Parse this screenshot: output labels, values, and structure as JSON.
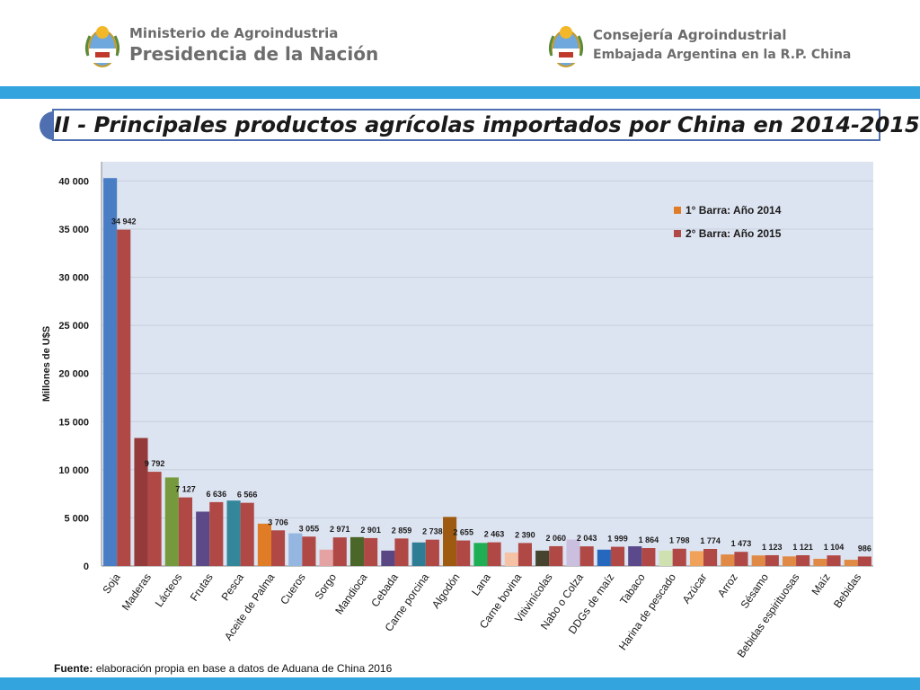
{
  "header": {
    "left_org_line1": "Ministerio de Agroindustria",
    "left_org_line2": "Presidencia de la Nación",
    "right_org_line1": "Consejería Agroindustrial",
    "right_org_line2": "Embajada Argentina en la R.P. China"
  },
  "title": "II - Principales productos agrícolas importados por China en 2014-2015",
  "source": {
    "label": "Fuente:",
    "text": "elaboración propia en base a datos de Aduana de China 2016"
  },
  "chart_data": {
    "type": "bar",
    "title": "",
    "xlabel": "",
    "ylabel": "Millones de U$S",
    "ylim": [
      0,
      42000
    ],
    "yticks": [
      0,
      5000,
      10000,
      15000,
      20000,
      25000,
      30000,
      35000,
      40000
    ],
    "ytick_labels": [
      "0",
      "5 000",
      "10 000",
      "15 000",
      "20 000",
      "25 000",
      "30 000",
      "35 000",
      "40 000"
    ],
    "grid": true,
    "legend_position": "top-right",
    "categories": [
      "Soja",
      "Maderas",
      "Lácteos",
      "Frutas",
      "Pesca",
      "Aceite de Palma",
      "Cueros",
      "Sorgo",
      "Mandioca",
      "Cebada",
      "Carne porcina",
      "Algodón",
      "Lana",
      "Carne bovina",
      "Vitivinícolas",
      "Nabo o Colza",
      "DDGs de maíz",
      "Tabaco",
      "Harina de pescado",
      "Azúcar",
      "Arroz",
      "Sésamo",
      "Bebidas espirituosas",
      "Maíz",
      "Bebidas"
    ],
    "series": [
      {
        "name": "1° Barra: Año 2014",
        "values": [
          40300,
          13300,
          9200,
          5650,
          6800,
          4400,
          3400,
          1700,
          3000,
          1600,
          2450,
          5100,
          2400,
          1400,
          1600,
          2750,
          1700,
          2050,
          1600,
          1550,
          1200,
          1100,
          1000,
          750,
          650
        ],
        "colors": [
          "#4a7ec4",
          "#953a3a",
          "#77993e",
          "#5b4a87",
          "#34879b",
          "#e07c26",
          "#94b6e0",
          "#e5a2a2",
          "#4a6629",
          "#5a4682",
          "#2e7d94",
          "#9e5a10",
          "#1fae53",
          "#f5c2a6",
          "#46442e",
          "#cbbfe0",
          "#2568bd",
          "#5a4a8c",
          "#cfe1b0",
          "#f0a25a",
          "#e08a45",
          "#e08a45",
          "#e08a45",
          "#e08a45",
          "#e08a45"
        ]
      },
      {
        "name": "2° Barra: Año 2015",
        "values": [
          34942,
          9792,
          7127,
          6636,
          6566,
          3706,
          3055,
          2971,
          2901,
          2859,
          2738,
          2655,
          2463,
          2390,
          2060,
          2043,
          1999,
          1864,
          1798,
          1774,
          1473,
          1123,
          1121,
          1104,
          986
        ],
        "labels": [
          "34 942",
          "9 792",
          "7 127",
          "6 636",
          "6 566",
          "3 706",
          "3 055",
          "2 971",
          "2 901",
          "2 859",
          "2 738",
          "2 655",
          "2 463",
          "2 390",
          "2 060",
          "2 043",
          "1 999",
          "1 864",
          "1 798",
          "1 774",
          "1 473",
          "1 123",
          "1 121",
          "1 104",
          "986"
        ],
        "color": "#b04845"
      }
    ],
    "legend_swatch_colors": [
      "#e07c26",
      "#b04845"
    ]
  }
}
